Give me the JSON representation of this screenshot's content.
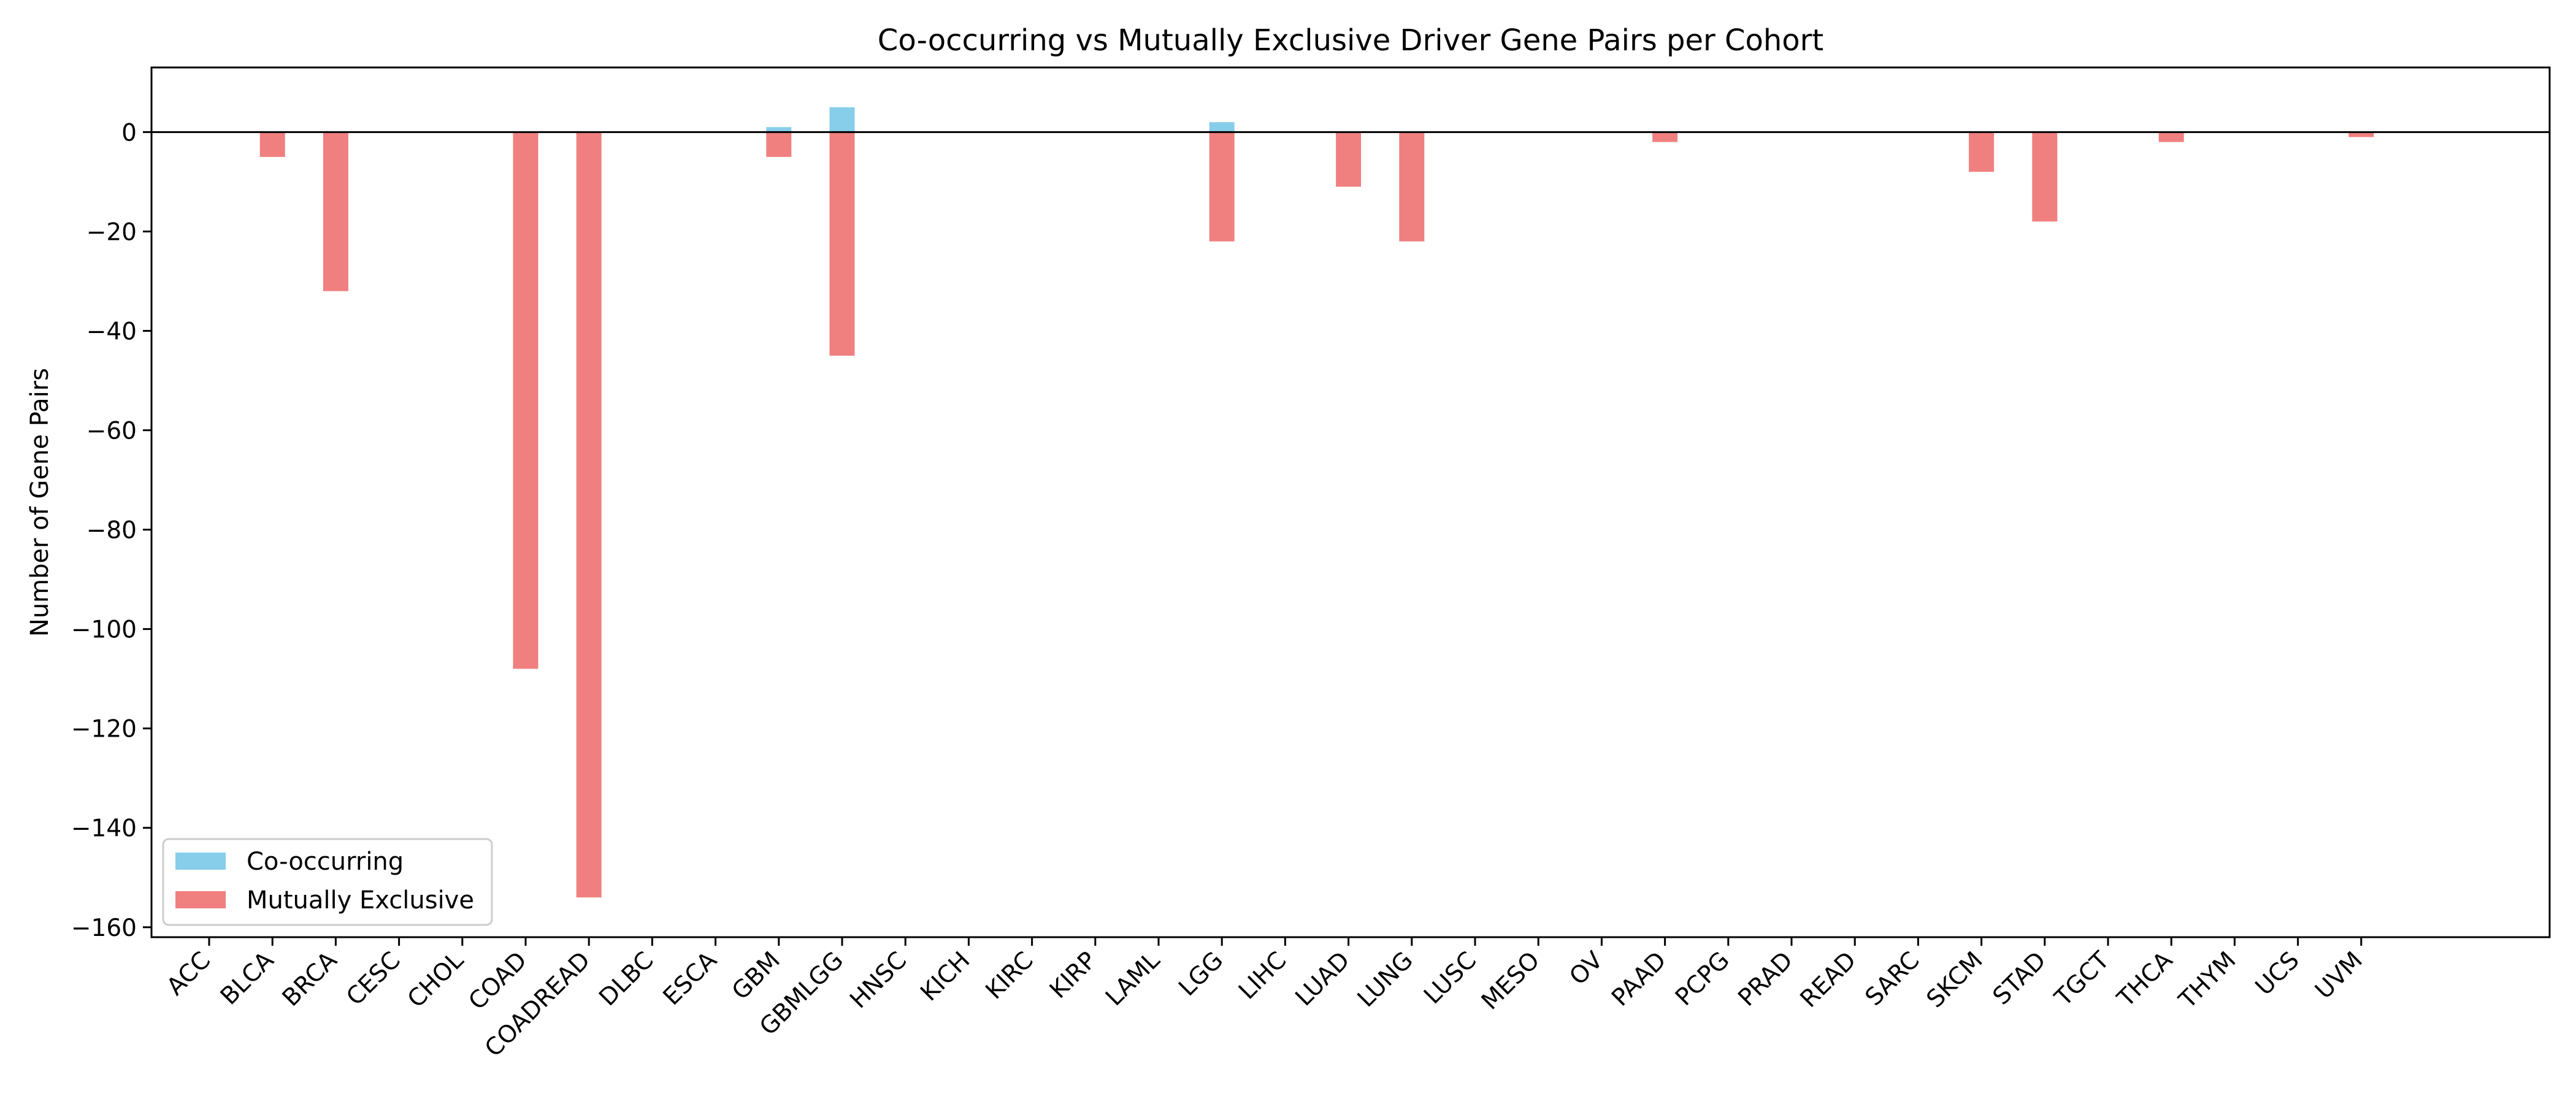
{
  "chart_data": {
    "type": "bar",
    "title": "Co-occurring vs Mutually Exclusive Driver Gene Pairs per Cohort",
    "xlabel": "",
    "ylabel": "Number of Gene Pairs",
    "ylim": [
      -162,
      13
    ],
    "yticks": [
      0,
      -20,
      -40,
      -60,
      -80,
      -100,
      -120,
      -140,
      -160
    ],
    "grid": false,
    "legend_position": "lower-left",
    "zero_line": true,
    "categories": [
      "ACC",
      "BLCA",
      "BRCA",
      "CESC",
      "CHOL",
      "COAD",
      "COADREAD",
      "DLBC",
      "ESCA",
      "GBM",
      "GBMLGG",
      "HNSC",
      "KICH",
      "KIRC",
      "KIRP",
      "LAML",
      "LGG",
      "LIHC",
      "LUAD",
      "LUNG",
      "LUSC",
      "MESO",
      "OV",
      "PAAD",
      "PCPG",
      "PRAD",
      "READ",
      "SARC",
      "SKCM",
      "STAD",
      "TGCT",
      "THCA",
      "THYM",
      "UCS",
      "UVM"
    ],
    "series": [
      {
        "name": "Co-occurring",
        "color": "#87ceeb",
        "values": [
          0,
          0,
          0,
          0,
          0,
          0,
          0,
          0,
          0,
          1,
          5,
          0,
          0,
          0,
          0,
          0,
          2,
          0,
          0,
          0,
          0,
          0,
          0,
          0,
          0,
          0,
          0,
          0,
          0,
          0,
          0,
          0,
          0,
          0,
          0
        ]
      },
      {
        "name": "Mutually Exclusive",
        "color": "#f08080",
        "values": [
          0,
          -5,
          -32,
          0,
          0,
          -108,
          -154,
          0,
          0,
          -5,
          -45,
          0,
          0,
          0,
          0,
          0,
          -22,
          0,
          -11,
          -22,
          0,
          0,
          0,
          -2,
          0,
          0,
          0,
          0,
          -8,
          -18,
          0,
          -2,
          0,
          0,
          -1
        ]
      }
    ]
  }
}
